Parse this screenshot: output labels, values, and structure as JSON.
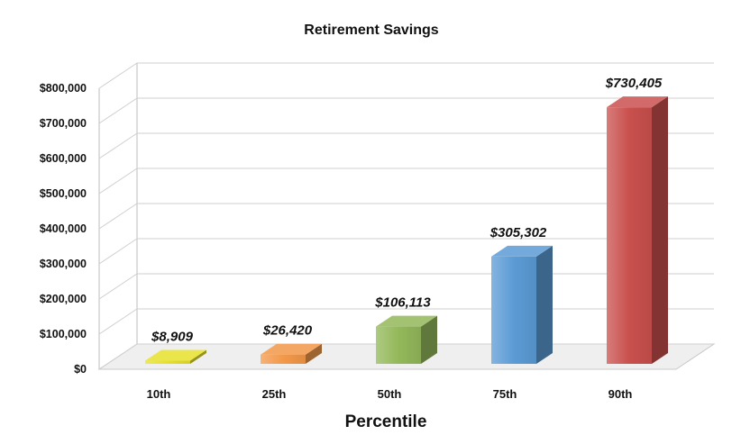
{
  "chart_data": {
    "type": "bar",
    "title": "Retirement Savings",
    "xlabel": "Percentile",
    "ylabel": "",
    "categories": [
      "10th",
      "25th",
      "50th",
      "75th",
      "90th"
    ],
    "values": [
      8909,
      26420,
      106113,
      305302,
      730405
    ],
    "value_labels": [
      "$8,909",
      "$26,420",
      "$106,113",
      "$305,302",
      "$730,405"
    ],
    "ylim": [
      0,
      800000
    ],
    "yticks": [
      0,
      100000,
      200000,
      300000,
      400000,
      500000,
      600000,
      700000,
      800000
    ],
    "ytick_labels": [
      "$0",
      "$100,000",
      "$200,000",
      "$300,000",
      "$400,000",
      "$500,000",
      "$600,000",
      "$700,000",
      "$800,000"
    ],
    "grid": true,
    "legend": "none",
    "style": "3d-columns",
    "colors": [
      "#e6e02a",
      "#f2984a",
      "#93b85a",
      "#5b9bd5",
      "#c9504d"
    ]
  }
}
